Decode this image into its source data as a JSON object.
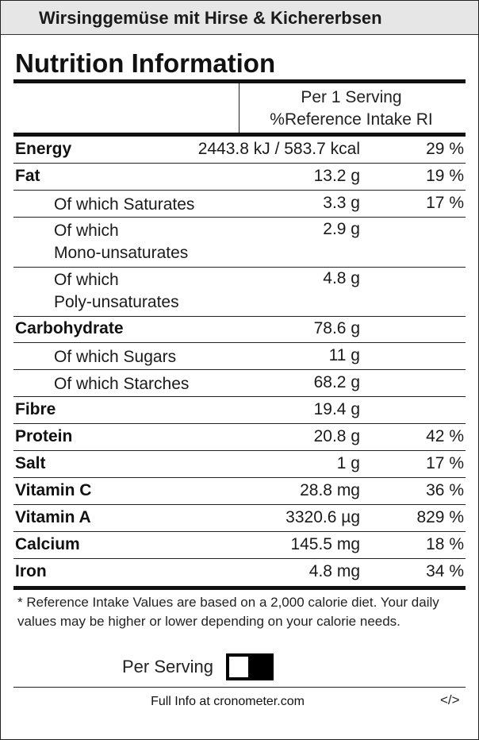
{
  "recipe_title": "Wirsinggemüse mit Hirse & Kichererbsen",
  "heading": "Nutrition Information",
  "column_headers": {
    "per_serving": "Per 1 Serving",
    "reference_intake": "%Reference Intake RI"
  },
  "nutrients": [
    {
      "name": "Energy",
      "amount": "2443.8 kJ / 583.7 kcal",
      "pct": "29 %"
    },
    {
      "name": "Fat",
      "amount": "13.2 g",
      "pct": "19 %"
    },
    {
      "name": "Of which Saturates",
      "amount": "3.3 g",
      "pct": "17 %"
    },
    {
      "name": "Of which",
      "name_line2": "Mono-unsaturates",
      "amount": "2.9 g",
      "pct": ""
    },
    {
      "name": "Of which",
      "name_line2": "Poly-unsaturates",
      "amount": "4.8 g",
      "pct": ""
    },
    {
      "name": "Carbohydrate",
      "amount": "78.6 g",
      "pct": ""
    },
    {
      "name": "Of which Sugars",
      "amount": "11 g",
      "pct": ""
    },
    {
      "name": "Of which Starches",
      "amount": "68.2 g",
      "pct": ""
    },
    {
      "name": "Fibre",
      "amount": "19.4 g",
      "pct": ""
    },
    {
      "name": "Protein",
      "amount": "20.8 g",
      "pct": "42 %"
    },
    {
      "name": "Salt",
      "amount": "1 g",
      "pct": "17 %"
    },
    {
      "name": "Vitamin C",
      "amount": "28.8 mg",
      "pct": "36 %"
    },
    {
      "name": "Vitamin A",
      "amount": "3320.6 µg",
      "pct": "829 %"
    },
    {
      "name": "Calcium",
      "amount": "145.5 mg",
      "pct": "18 %"
    },
    {
      "name": "Iron",
      "amount": "4.8 mg",
      "pct": "34 %"
    }
  ],
  "footnote": "* Reference Intake Values are based on a 2,000 calorie diet. Your daily values may be higher or lower depending on your calorie needs.",
  "toggle": {
    "label": "Per Serving",
    "on": true
  },
  "footer": {
    "link_text": "Full Info at cronometer.com",
    "embed_icon": "</>"
  }
}
